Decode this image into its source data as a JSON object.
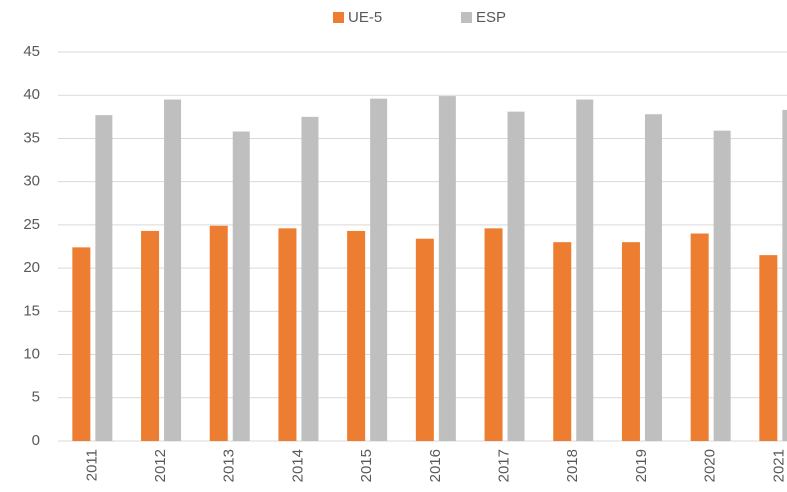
{
  "chart_data": {
    "type": "bar",
    "categories": [
      "2011",
      "2012",
      "2013",
      "2014",
      "2015",
      "2016",
      "2017",
      "2018",
      "2019",
      "2020",
      "2021"
    ],
    "series": [
      {
        "name": "UE-5",
        "color": "#ed7d31",
        "values": [
          22.4,
          24.3,
          24.9,
          24.6,
          24.3,
          23.4,
          24.6,
          23.0,
          23.0,
          24.0,
          21.5
        ]
      },
      {
        "name": "ESP",
        "color": "#bfbfbf",
        "values": [
          37.7,
          39.5,
          35.8,
          37.5,
          39.6,
          39.9,
          38.1,
          39.5,
          37.8,
          35.9,
          38.3
        ]
      }
    ],
    "ylim": [
      0,
      45
    ],
    "yticks": [
      0,
      5,
      10,
      15,
      20,
      25,
      30,
      35,
      40,
      45
    ],
    "grid": true,
    "legend": "top"
  }
}
